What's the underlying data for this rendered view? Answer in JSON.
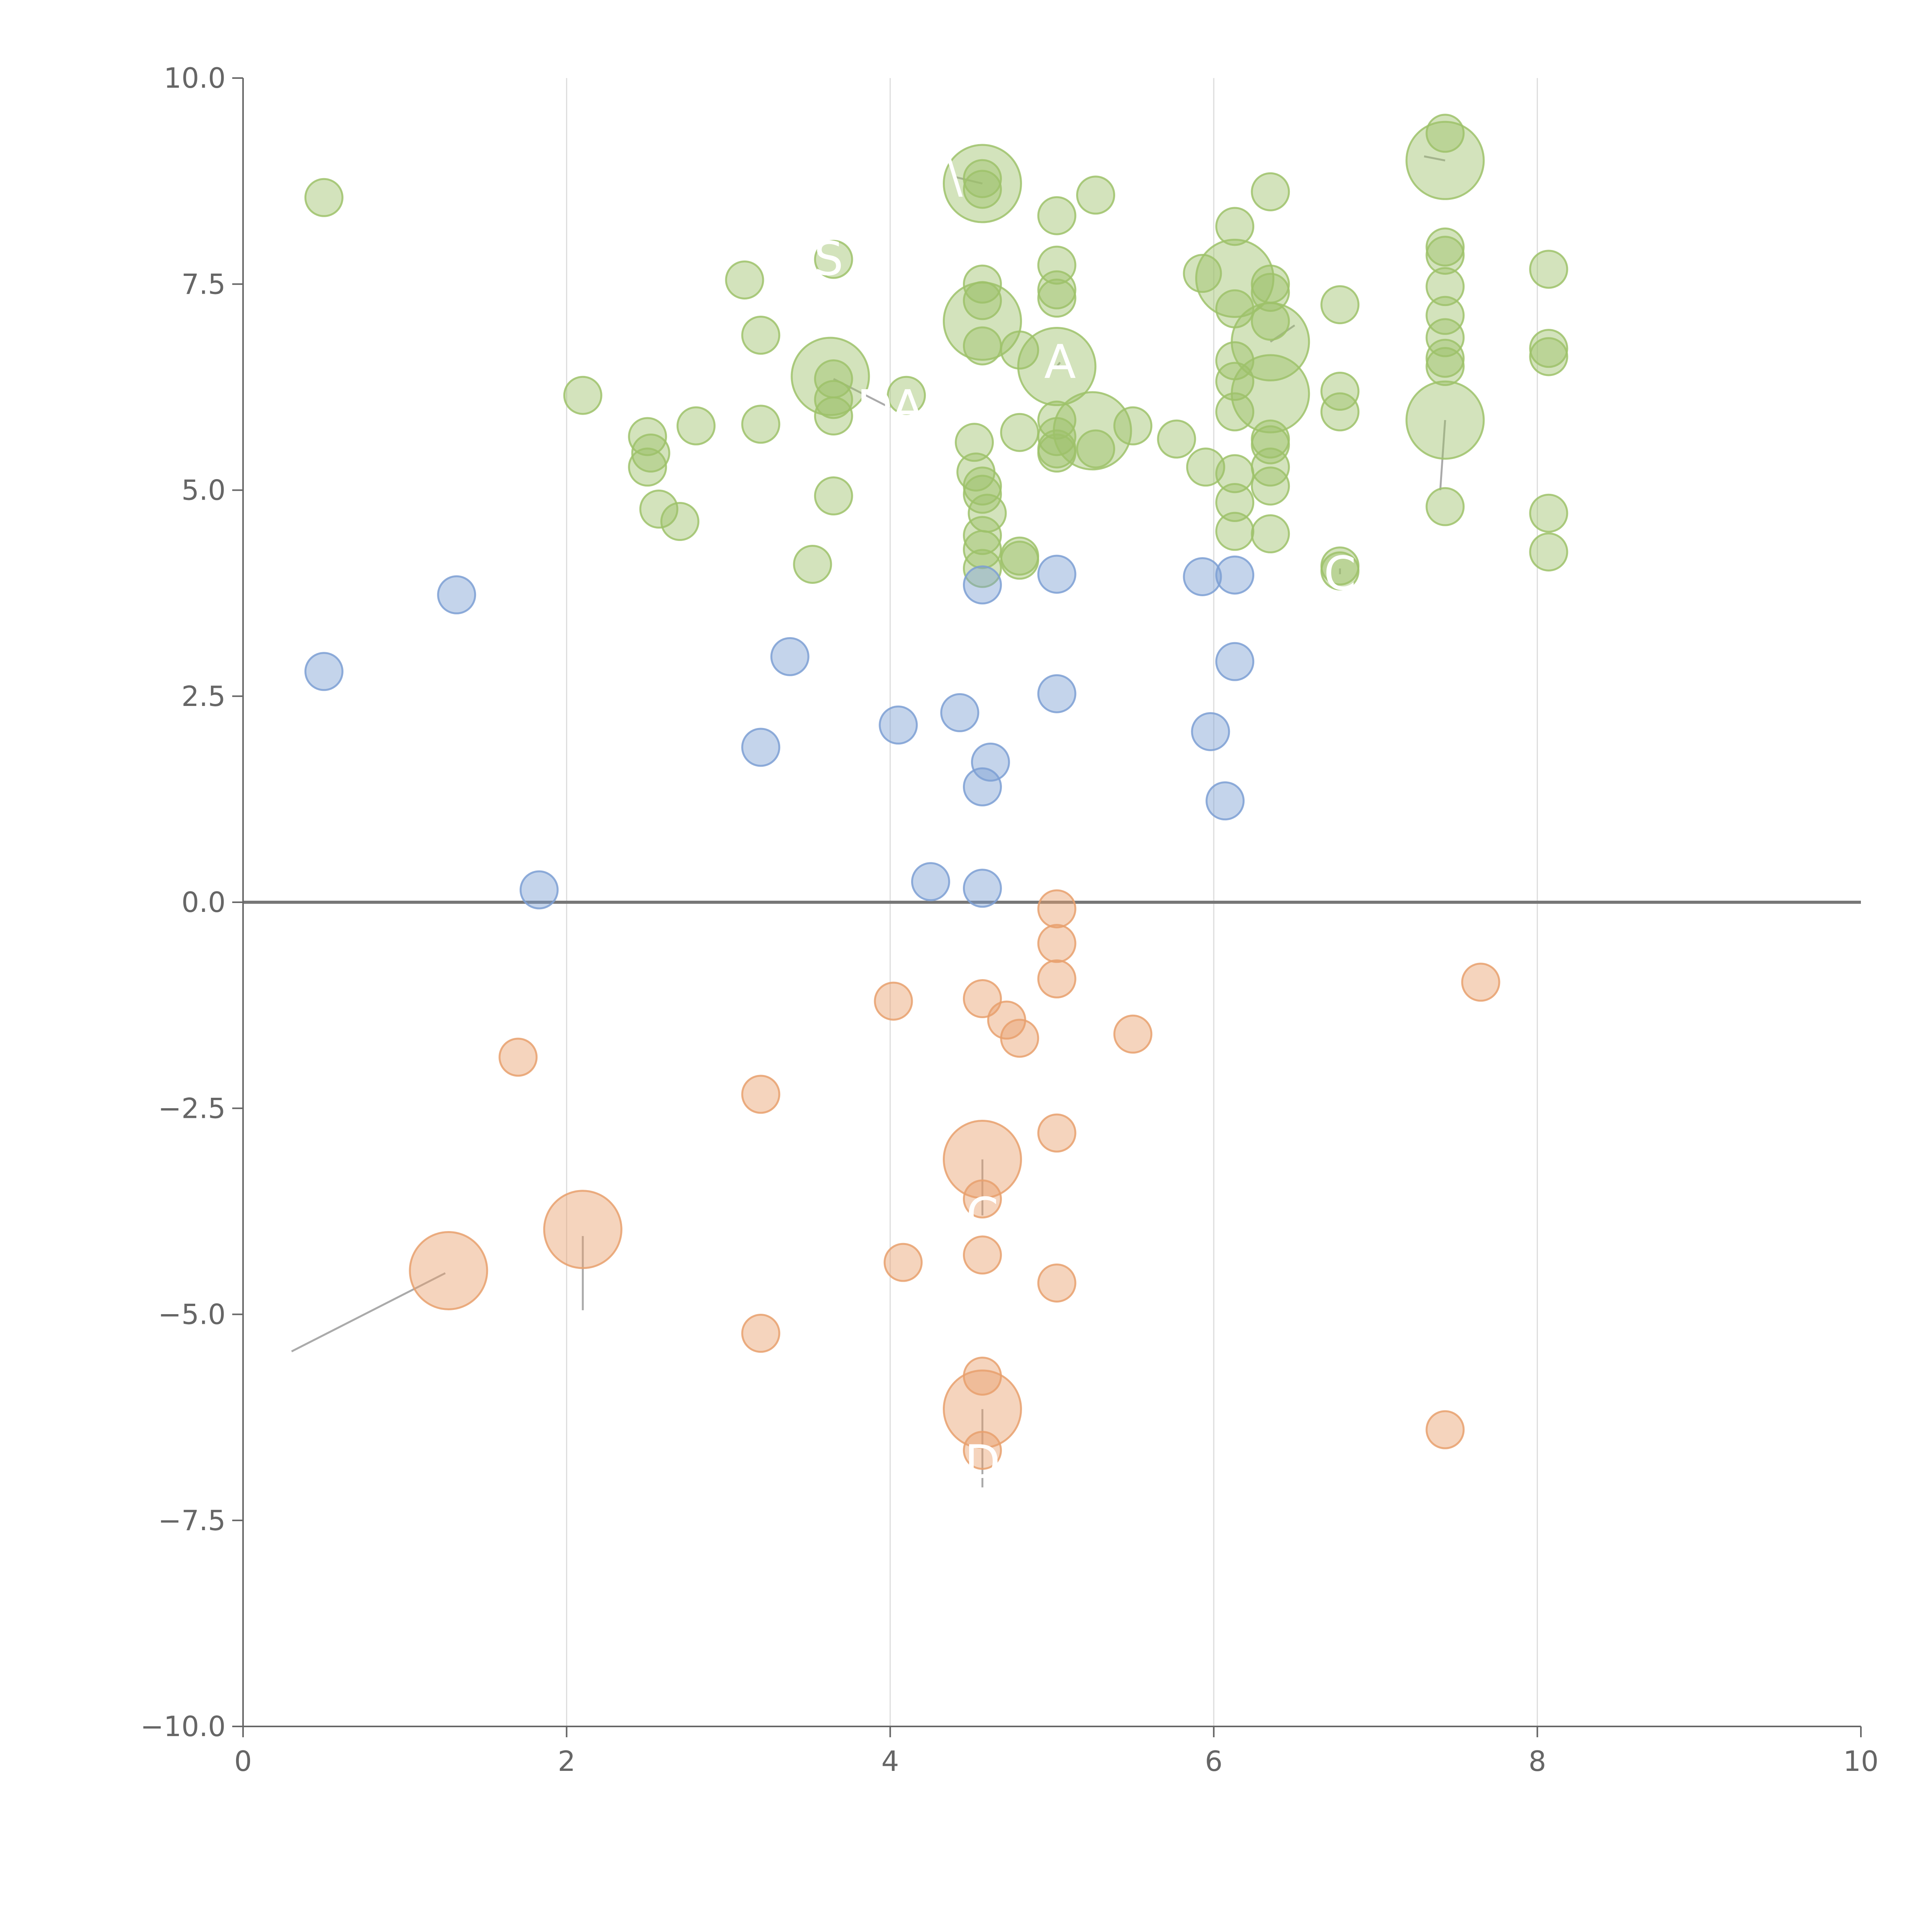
{
  "chart_data": {
    "type": "scatter",
    "title": "",
    "xlabel": "",
    "ylabel": "",
    "xlim": [
      0,
      10
    ],
    "ylim": [
      -10,
      10
    ],
    "x_ticks": [
      "0",
      "2",
      "4",
      "6",
      "8",
      "10"
    ],
    "y_ticks": [
      "10.0",
      "7.5",
      "5.0",
      "2.5",
      "0.0",
      "−2.5",
      "−5.0",
      "−7.5",
      "−10.0"
    ],
    "x_tick_values": [
      0,
      2,
      4,
      6,
      8,
      10
    ],
    "y_tick_values": [
      10,
      7.5,
      5,
      2.5,
      0,
      -2.5,
      -5,
      -7.5,
      -10
    ],
    "vertical_grid": [
      2,
      4,
      6,
      8
    ],
    "zero_line": 0,
    "colors": {
      "high": "#9dc26a",
      "mid": "#7d9fd3",
      "low": "#e8a06d",
      "axis": "#666666",
      "grid": "#dddddd",
      "zero_line": "#777777",
      "leader": "#aaaaaa"
    },
    "series": [
      {
        "name": "high",
        "color": "#9dc26a",
        "points": [
          {
            "x": 0.5,
            "y": 8.55,
            "s": 1
          },
          {
            "x": 2.1,
            "y": 6.15,
            "s": 1
          },
          {
            "x": 2.5,
            "y": 5.65,
            "s": 1
          },
          {
            "x": 2.52,
            "y": 5.45,
            "s": 1
          },
          {
            "x": 2.5,
            "y": 5.28,
            "s": 1
          },
          {
            "x": 2.57,
            "y": 4.77,
            "s": 1
          },
          {
            "x": 2.7,
            "y": 4.62,
            "s": 1
          },
          {
            "x": 2.8,
            "y": 5.78,
            "s": 1
          },
          {
            "x": 3.1,
            "y": 7.55,
            "s": 1
          },
          {
            "x": 3.2,
            "y": 6.88,
            "s": 1
          },
          {
            "x": 3.2,
            "y": 5.8,
            "s": 1
          },
          {
            "x": 3.52,
            "y": 4.1,
            "s": 1
          },
          {
            "x": 3.65,
            "y": 7.8,
            "s": 1
          },
          {
            "x": 3.63,
            "y": 6.38,
            "s": 2.5
          },
          {
            "x": 3.65,
            "y": 6.35,
            "s": 1
          },
          {
            "x": 3.65,
            "y": 6.1,
            "s": 1
          },
          {
            "x": 3.65,
            "y": 5.9,
            "s": 1
          },
          {
            "x": 3.65,
            "y": 4.93,
            "s": 1
          },
          {
            "x": 4.1,
            "y": 6.15,
            "s": 1
          },
          {
            "x": 4.52,
            "y": 5.58,
            "s": 1
          },
          {
            "x": 4.53,
            "y": 5.22,
            "s": 1
          },
          {
            "x": 4.57,
            "y": 8.72,
            "s": 2.5
          },
          {
            "x": 4.57,
            "y": 8.78,
            "s": 1
          },
          {
            "x": 4.57,
            "y": 8.65,
            "s": 1
          },
          {
            "x": 4.57,
            "y": 7.5,
            "s": 1
          },
          {
            "x": 4.57,
            "y": 7.3,
            "s": 1
          },
          {
            "x": 4.57,
            "y": 7.05,
            "s": 2.5
          },
          {
            "x": 4.57,
            "y": 6.75,
            "s": 1
          },
          {
            "x": 4.57,
            "y": 5.05,
            "s": 1
          },
          {
            "x": 4.57,
            "y": 4.95,
            "s": 1
          },
          {
            "x": 4.6,
            "y": 4.72,
            "s": 1
          },
          {
            "x": 4.57,
            "y": 4.45,
            "s": 1
          },
          {
            "x": 4.57,
            "y": 4.28,
            "s": 1
          },
          {
            "x": 4.57,
            "y": 4.05,
            "s": 1
          },
          {
            "x": 4.8,
            "y": 6.7,
            "s": 1
          },
          {
            "x": 4.8,
            "y": 5.7,
            "s": 1
          },
          {
            "x": 4.8,
            "y": 4.2,
            "s": 1
          },
          {
            "x": 4.8,
            "y": 4.15,
            "s": 1
          },
          {
            "x": 5.03,
            "y": 8.33,
            "s": 1
          },
          {
            "x": 5.03,
            "y": 7.73,
            "s": 1
          },
          {
            "x": 5.03,
            "y": 7.43,
            "s": 1
          },
          {
            "x": 5.03,
            "y": 7.33,
            "s": 1
          },
          {
            "x": 5.03,
            "y": 6.5,
            "s": 2.5
          },
          {
            "x": 5.03,
            "y": 5.85,
            "s": 1
          },
          {
            "x": 5.03,
            "y": 5.65,
            "s": 1
          },
          {
            "x": 5.03,
            "y": 5.5,
            "s": 1
          },
          {
            "x": 5.03,
            "y": 5.45,
            "s": 1
          },
          {
            "x": 5.25,
            "y": 5.72,
            "s": 2.5
          },
          {
            "x": 5.27,
            "y": 8.58,
            "s": 1
          },
          {
            "x": 5.27,
            "y": 5.5,
            "s": 1
          },
          {
            "x": 5.5,
            "y": 5.78,
            "s": 1
          },
          {
            "x": 5.77,
            "y": 5.62,
            "s": 1
          },
          {
            "x": 5.93,
            "y": 7.63,
            "s": 1
          },
          {
            "x": 5.95,
            "y": 5.28,
            "s": 1
          },
          {
            "x": 6.13,
            "y": 8.2,
            "s": 1
          },
          {
            "x": 6.13,
            "y": 7.57,
            "s": 2.5
          },
          {
            "x": 6.13,
            "y": 7.2,
            "s": 1
          },
          {
            "x": 6.13,
            "y": 6.57,
            "s": 1
          },
          {
            "x": 6.13,
            "y": 6.32,
            "s": 1
          },
          {
            "x": 6.13,
            "y": 5.95,
            "s": 1
          },
          {
            "x": 6.13,
            "y": 5.2,
            "s": 1
          },
          {
            "x": 6.13,
            "y": 4.85,
            "s": 1
          },
          {
            "x": 6.13,
            "y": 4.5,
            "s": 1
          },
          {
            "x": 6.35,
            "y": 8.62,
            "s": 1
          },
          {
            "x": 6.35,
            "y": 7.5,
            "s": 1
          },
          {
            "x": 6.35,
            "y": 7.4,
            "s": 1
          },
          {
            "x": 6.35,
            "y": 6.8,
            "s": 2.5
          },
          {
            "x": 6.35,
            "y": 6.17,
            "s": 2.5
          },
          {
            "x": 6.35,
            "y": 5.62,
            "s": 1
          },
          {
            "x": 6.35,
            "y": 5.55,
            "s": 1
          },
          {
            "x": 6.35,
            "y": 5.28,
            "s": 1
          },
          {
            "x": 6.35,
            "y": 5.05,
            "s": 1
          },
          {
            "x": 6.35,
            "y": 4.47,
            "s": 1
          },
          {
            "x": 6.35,
            "y": 7.05,
            "s": 1
          },
          {
            "x": 6.78,
            "y": 7.25,
            "s": 1
          },
          {
            "x": 6.78,
            "y": 6.2,
            "s": 1
          },
          {
            "x": 6.78,
            "y": 5.95,
            "s": 1
          },
          {
            "x": 6.78,
            "y": 4.08,
            "s": 1
          },
          {
            "x": 6.78,
            "y": 4.02,
            "s": 1
          },
          {
            "x": 7.43,
            "y": 9.33,
            "s": 1
          },
          {
            "x": 7.43,
            "y": 9.0,
            "s": 2.5
          },
          {
            "x": 7.43,
            "y": 7.95,
            "s": 1
          },
          {
            "x": 7.43,
            "y": 7.85,
            "s": 1
          },
          {
            "x": 7.43,
            "y": 7.47,
            "s": 1
          },
          {
            "x": 7.43,
            "y": 7.12,
            "s": 1
          },
          {
            "x": 7.43,
            "y": 6.85,
            "s": 1
          },
          {
            "x": 7.43,
            "y": 6.6,
            "s": 1
          },
          {
            "x": 7.43,
            "y": 6.5,
            "s": 1
          },
          {
            "x": 7.43,
            "y": 5.85,
            "s": 2.5
          },
          {
            "x": 7.43,
            "y": 4.8,
            "s": 1
          },
          {
            "x": 8.07,
            "y": 7.68,
            "s": 1
          },
          {
            "x": 8.07,
            "y": 6.72,
            "s": 1
          },
          {
            "x": 8.07,
            "y": 6.62,
            "s": 1
          },
          {
            "x": 8.07,
            "y": 4.72,
            "s": 1
          },
          {
            "x": 8.07,
            "y": 4.25,
            "s": 1
          }
        ]
      },
      {
        "name": "mid",
        "color": "#7d9fd3",
        "points": [
          {
            "x": 0.5,
            "y": 2.8,
            "s": 1
          },
          {
            "x": 1.32,
            "y": 3.73,
            "s": 1
          },
          {
            "x": 1.83,
            "y": 0.15,
            "s": 1
          },
          {
            "x": 3.2,
            "y": 1.88,
            "s": 1
          },
          {
            "x": 3.38,
            "y": 2.98,
            "s": 1
          },
          {
            "x": 4.05,
            "y": 2.15,
            "s": 1
          },
          {
            "x": 4.25,
            "y": 0.25,
            "s": 1
          },
          {
            "x": 4.43,
            "y": 2.3,
            "s": 1
          },
          {
            "x": 4.57,
            "y": 3.85,
            "s": 1
          },
          {
            "x": 4.62,
            "y": 1.7,
            "s": 1
          },
          {
            "x": 4.57,
            "y": 1.4,
            "s": 1
          },
          {
            "x": 4.57,
            "y": 0.17,
            "s": 1
          },
          {
            "x": 5.03,
            "y": 3.98,
            "s": 1
          },
          {
            "x": 5.03,
            "y": 2.53,
            "s": 1
          },
          {
            "x": 5.93,
            "y": 3.95,
            "s": 1
          },
          {
            "x": 5.98,
            "y": 2.07,
            "s": 1
          },
          {
            "x": 6.07,
            "y": 1.23,
            "s": 1
          },
          {
            "x": 6.13,
            "y": 3.97,
            "s": 1
          },
          {
            "x": 6.13,
            "y": 2.92,
            "s": 1
          }
        ]
      },
      {
        "name": "low",
        "color": "#e8a06d",
        "points": [
          {
            "x": 1.27,
            "y": -4.47,
            "s": 2.5
          },
          {
            "x": 1.7,
            "y": -1.88,
            "s": 1
          },
          {
            "x": 2.1,
            "y": -3.97,
            "s": 2.5
          },
          {
            "x": 3.2,
            "y": -2.33,
            "s": 1
          },
          {
            "x": 3.2,
            "y": -5.23,
            "s": 1
          },
          {
            "x": 4.02,
            "y": -1.2,
            "s": 1
          },
          {
            "x": 4.08,
            "y": -4.37,
            "s": 1
          },
          {
            "x": 4.57,
            "y": -1.17,
            "s": 1
          },
          {
            "x": 4.72,
            "y": -1.43,
            "s": 1
          },
          {
            "x": 4.8,
            "y": -1.65,
            "s": 1
          },
          {
            "x": 4.57,
            "y": -3.12,
            "s": 2.5
          },
          {
            "x": 4.57,
            "y": -3.6,
            "s": 1
          },
          {
            "x": 4.57,
            "y": -4.28,
            "s": 1
          },
          {
            "x": 4.57,
            "y": -5.75,
            "s": 1
          },
          {
            "x": 4.57,
            "y": -6.15,
            "s": 2.5
          },
          {
            "x": 4.57,
            "y": -6.65,
            "s": 1
          },
          {
            "x": 5.03,
            "y": -0.08,
            "s": 1
          },
          {
            "x": 5.03,
            "y": -0.5,
            "s": 1
          },
          {
            "x": 5.03,
            "y": -0.93,
            "s": 1
          },
          {
            "x": 5.03,
            "y": -2.8,
            "s": 1
          },
          {
            "x": 5.03,
            "y": -4.62,
            "s": 1
          },
          {
            "x": 5.5,
            "y": -1.6,
            "s": 1
          },
          {
            "x": 7.43,
            "y": -6.4,
            "s": 1
          },
          {
            "x": 7.65,
            "y": -0.97,
            "s": 1
          }
        ]
      }
    ],
    "annotations": [
      {
        "text": "S",
        "x": 3.62,
        "y": 7.8,
        "ax": 3.62,
        "ay": 7.8
      },
      {
        "text": "A",
        "x": 5.05,
        "y": 6.55,
        "ax": 5.03,
        "ay": 6.5
      },
      {
        "text": "DA",
        "x": 4.0,
        "y": 6.0,
        "ax": 3.65,
        "ay": 6.35
      },
      {
        "text": "\\",
        "x": 4.4,
        "y": 8.8,
        "ax": 4.57,
        "ay": 8.72
      },
      {
        "text": "C",
        "x": 6.78,
        "y": 3.98,
        "ax": 6.78,
        "ay": 4.05
      },
      {
        "text": "C",
        "x": 4.57,
        "y": -3.8,
        "ax": 4.57,
        "ay": -3.12
      },
      {
        "text": "D",
        "x": 4.57,
        "y": -6.8,
        "ax": 4.57,
        "ay": -6.15
      },
      {
        "text": "",
        "x": 0.3,
        "y": -5.45,
        "ax": 1.25,
        "ay": -4.5
      },
      {
        "text": "",
        "x": 2.1,
        "y": -4.95,
        "ax": 2.1,
        "ay": -4.05
      },
      {
        "text": "",
        "x": 4.57,
        "y": -7.1,
        "ax": 4.57,
        "ay": -6.2
      },
      {
        "text": "",
        "x": 7.4,
        "y": 5.0,
        "ax": 7.43,
        "ay": 5.85
      },
      {
        "text": "",
        "x": 6.5,
        "y": 7.0,
        "ax": 6.35,
        "ay": 6.8
      },
      {
        "text": "",
        "x": 7.3,
        "y": 9.05,
        "ax": 7.43,
        "ay": 9.0
      }
    ]
  }
}
